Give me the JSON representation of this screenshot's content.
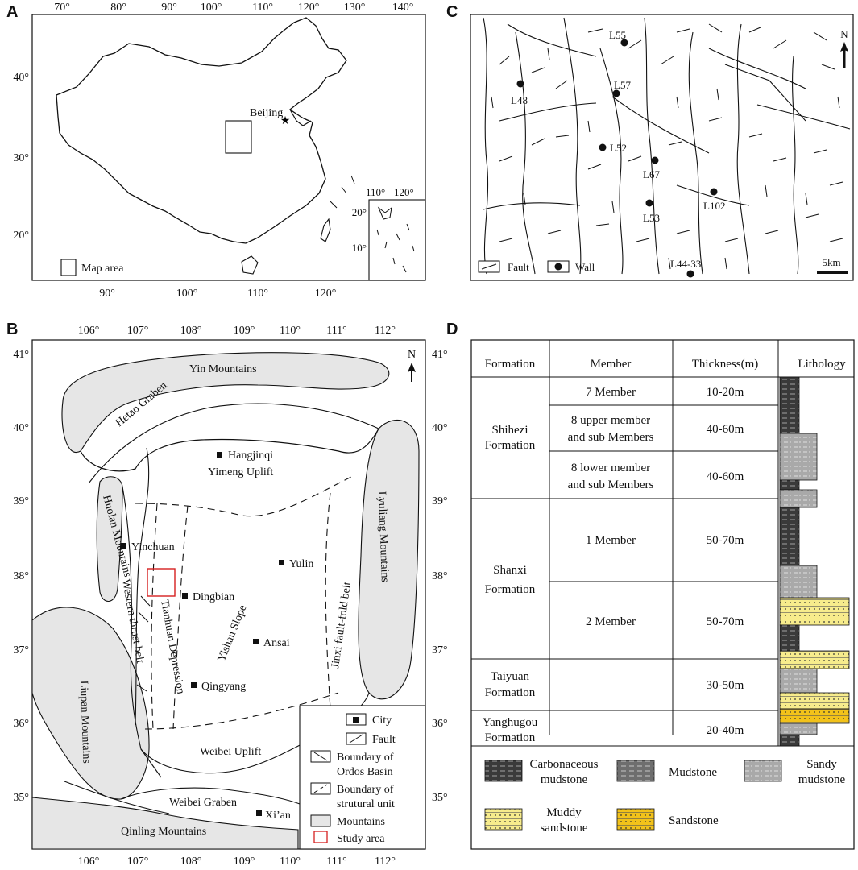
{
  "panels": {
    "a": {
      "letter": "A",
      "top_ticks": [
        "70°",
        "80°",
        "90°",
        "100°",
        "110°",
        "120°",
        "130°",
        "140°"
      ],
      "bottom_ticks": [
        "90°",
        "100°",
        "110°",
        "120°"
      ],
      "left_ticks": [
        "40°",
        "30°",
        "20°"
      ],
      "capital": "Beijing",
      "legend_label": "Map area",
      "inset_top_ticks": [
        "110°",
        "120°"
      ],
      "inset_left_ticks": [
        "20°",
        "10°"
      ]
    },
    "b": {
      "letter": "B",
      "top_ticks": [
        "106°",
        "107°",
        "108°",
        "109°",
        "110°",
        "111°",
        "112°"
      ],
      "bottom_ticks": [
        "106°",
        "107°",
        "108°",
        "109°",
        "110°",
        "111°",
        "112°"
      ],
      "left_ticks": [
        "41°",
        "40°",
        "39°",
        "38°",
        "37°",
        "36°",
        "35°"
      ],
      "right_ticks": [
        "41°",
        "40°",
        "39°",
        "38°",
        "37°",
        "36°",
        "35°"
      ],
      "north": "N",
      "units": {
        "yin": "Yin Mountains",
        "hetao": "Hetao Graben",
        "hangjinqi": "Hangjinqi",
        "yimeng": "Yimeng Uplift",
        "huolan": "Huolan Mountains",
        "yinchuan": "Yinchuan",
        "western": "Western thrust belt",
        "tianhuan": "Tianhuan Depression",
        "dingbian": "Dingbian",
        "yishan": "Yishan Slope",
        "yulin": "Yulin",
        "ansai": "Ansai",
        "jinxi": "Jinxi fault-fold belt",
        "lyuliang": "Lyuliang Mountains",
        "liupan": "Liupan Mountains",
        "qingyang": "Qingyang",
        "weibei_uplift": "Weibei Uplift",
        "weibei_graben": "Weibei Graben",
        "xian": "Xi’an",
        "qinling": "Qinling Mountains"
      },
      "legend": {
        "city": "City",
        "fault": "Fault",
        "boundary_ordos_1": "Boundary of",
        "boundary_ordos_2": "Ordos Basin",
        "boundary_unit_1": "Boundary of",
        "boundary_unit_2": "strutural unit",
        "mountains": "Mountains",
        "study": "Study area"
      }
    },
    "c": {
      "letter": "C",
      "north": "N",
      "wells": [
        "L55",
        "L48",
        "L57",
        "L52",
        "L67",
        "L53",
        "L102",
        "L44-33"
      ],
      "legend_fault": "Fault",
      "legend_wall": "Wall",
      "scale": "5km"
    },
    "d": {
      "letter": "D",
      "headers": [
        "Formation",
        "Member",
        "Thickness(m)",
        "Lithology"
      ],
      "formations": [
        {
          "line1": "Shihezi",
          "line2": "Formation"
        },
        {
          "line1": "Shanxi",
          "line2": "Formation"
        },
        {
          "line1": "Taiyuan",
          "line2": "Formation"
        },
        {
          "line1": "Yanghugou",
          "line2": "Formation"
        }
      ],
      "members": [
        {
          "line1": "7 Member",
          "line2": "",
          "thickness": "10-20m"
        },
        {
          "line1": "8 upper member",
          "line2": "and sub Members",
          "thickness": "40-60m"
        },
        {
          "line1": "8 lower member",
          "line2": "and sub Members",
          "thickness": "40-60m"
        },
        {
          "line1": "1 Member",
          "line2": "",
          "thickness": "50-70m"
        },
        {
          "line1": "2 Member",
          "line2": "",
          "thickness": "50-70m"
        },
        {
          "line1": "",
          "line2": "",
          "thickness": "30-50m"
        },
        {
          "line1": "",
          "line2": "",
          "thickness": "20-40m"
        }
      ],
      "legend": {
        "carb_1": "Carbonaceous",
        "carb_2": "mudstone",
        "mud": "Mudstone",
        "sandy_1": "Sandy",
        "sandy_2": "mudstone",
        "muddy_1": "Muddy",
        "muddy_2": "sandstone",
        "sand": "Sandstone"
      },
      "colors": {
        "carbonaceous": "#3a3a3a",
        "mudstone": "#6e6e6e",
        "sandy": "#a9a9a9",
        "muddy_sand": "#f7ec8c",
        "sandstone": "#f2c21a"
      }
    }
  }
}
